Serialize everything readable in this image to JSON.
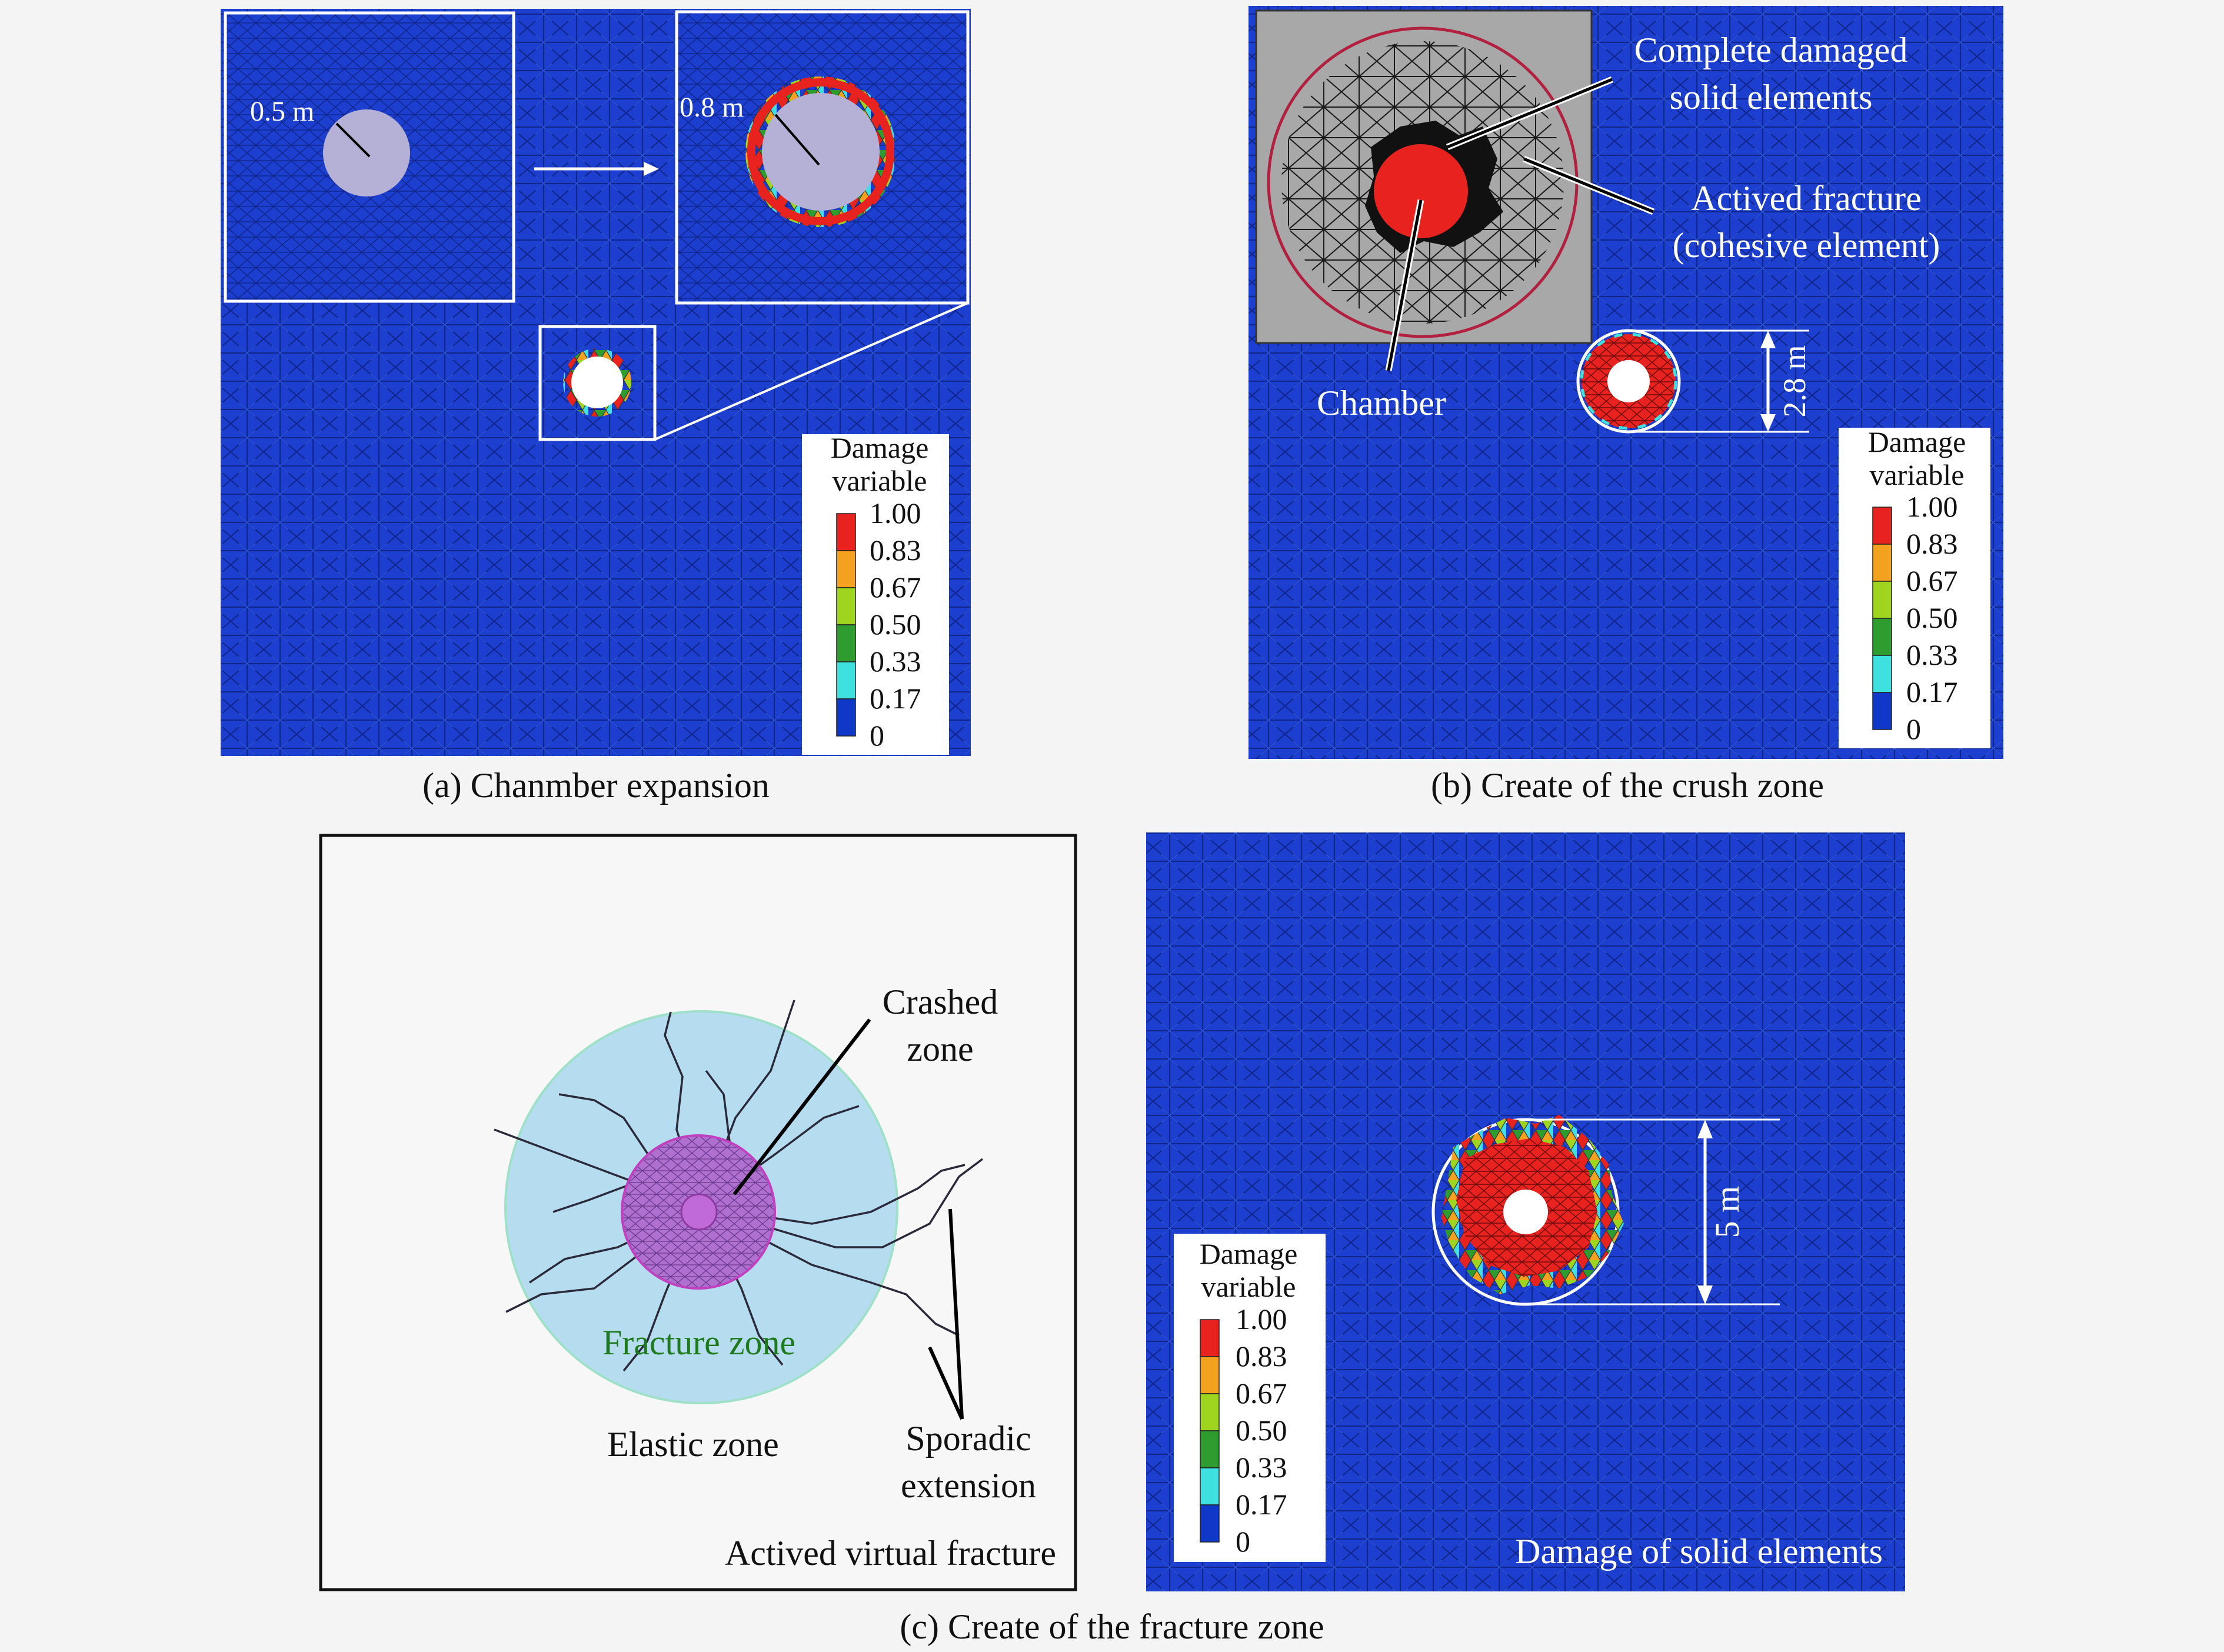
{
  "panel_a": {
    "caption": "(a) Chanmber expansion",
    "radius_initial": "0.5 m",
    "radius_expanded": "0.8 m"
  },
  "panel_b": {
    "caption": "(b) Create of the crush zone",
    "label_damaged_1": "Complete damaged",
    "label_damaged_2": "solid elements",
    "label_fracture_1": "Actived fracture",
    "label_fracture_2": "(cohesive element)",
    "label_chamber": "Chamber",
    "dimension": "2.8 m"
  },
  "panel_c_left": {
    "label_crashed_1": "Crashed",
    "label_crashed_2": "zone",
    "label_fracture_zone": "Fracture zone",
    "label_elastic_zone": "Elastic zone",
    "label_sporadic_1": "Sporadic",
    "label_sporadic_2": "extension",
    "title": "Actived virtual fracture"
  },
  "panel_c_right": {
    "dimension": "5 m",
    "title": "Damage of solid elements"
  },
  "caption_c": "(c) Create of the fracture zone",
  "legend": {
    "title_1": "Damage",
    "title_2": "variable",
    "levels": [
      "1.00",
      "0.83",
      "0.67",
      "0.50",
      "0.33",
      "0.17",
      "0"
    ],
    "colors": [
      "#e8231f",
      "#f2a21f",
      "#9fd41f",
      "#2e9c2e",
      "#3fe0e0",
      "#1038c8"
    ]
  },
  "colors": {
    "mesh_blue": "#1d3fcf",
    "damage_red": "#e8231f",
    "elastic_zone": "#b6dcf0",
    "crashed_zone": "#b070d0",
    "gray_inset": "#a8a8a8"
  }
}
